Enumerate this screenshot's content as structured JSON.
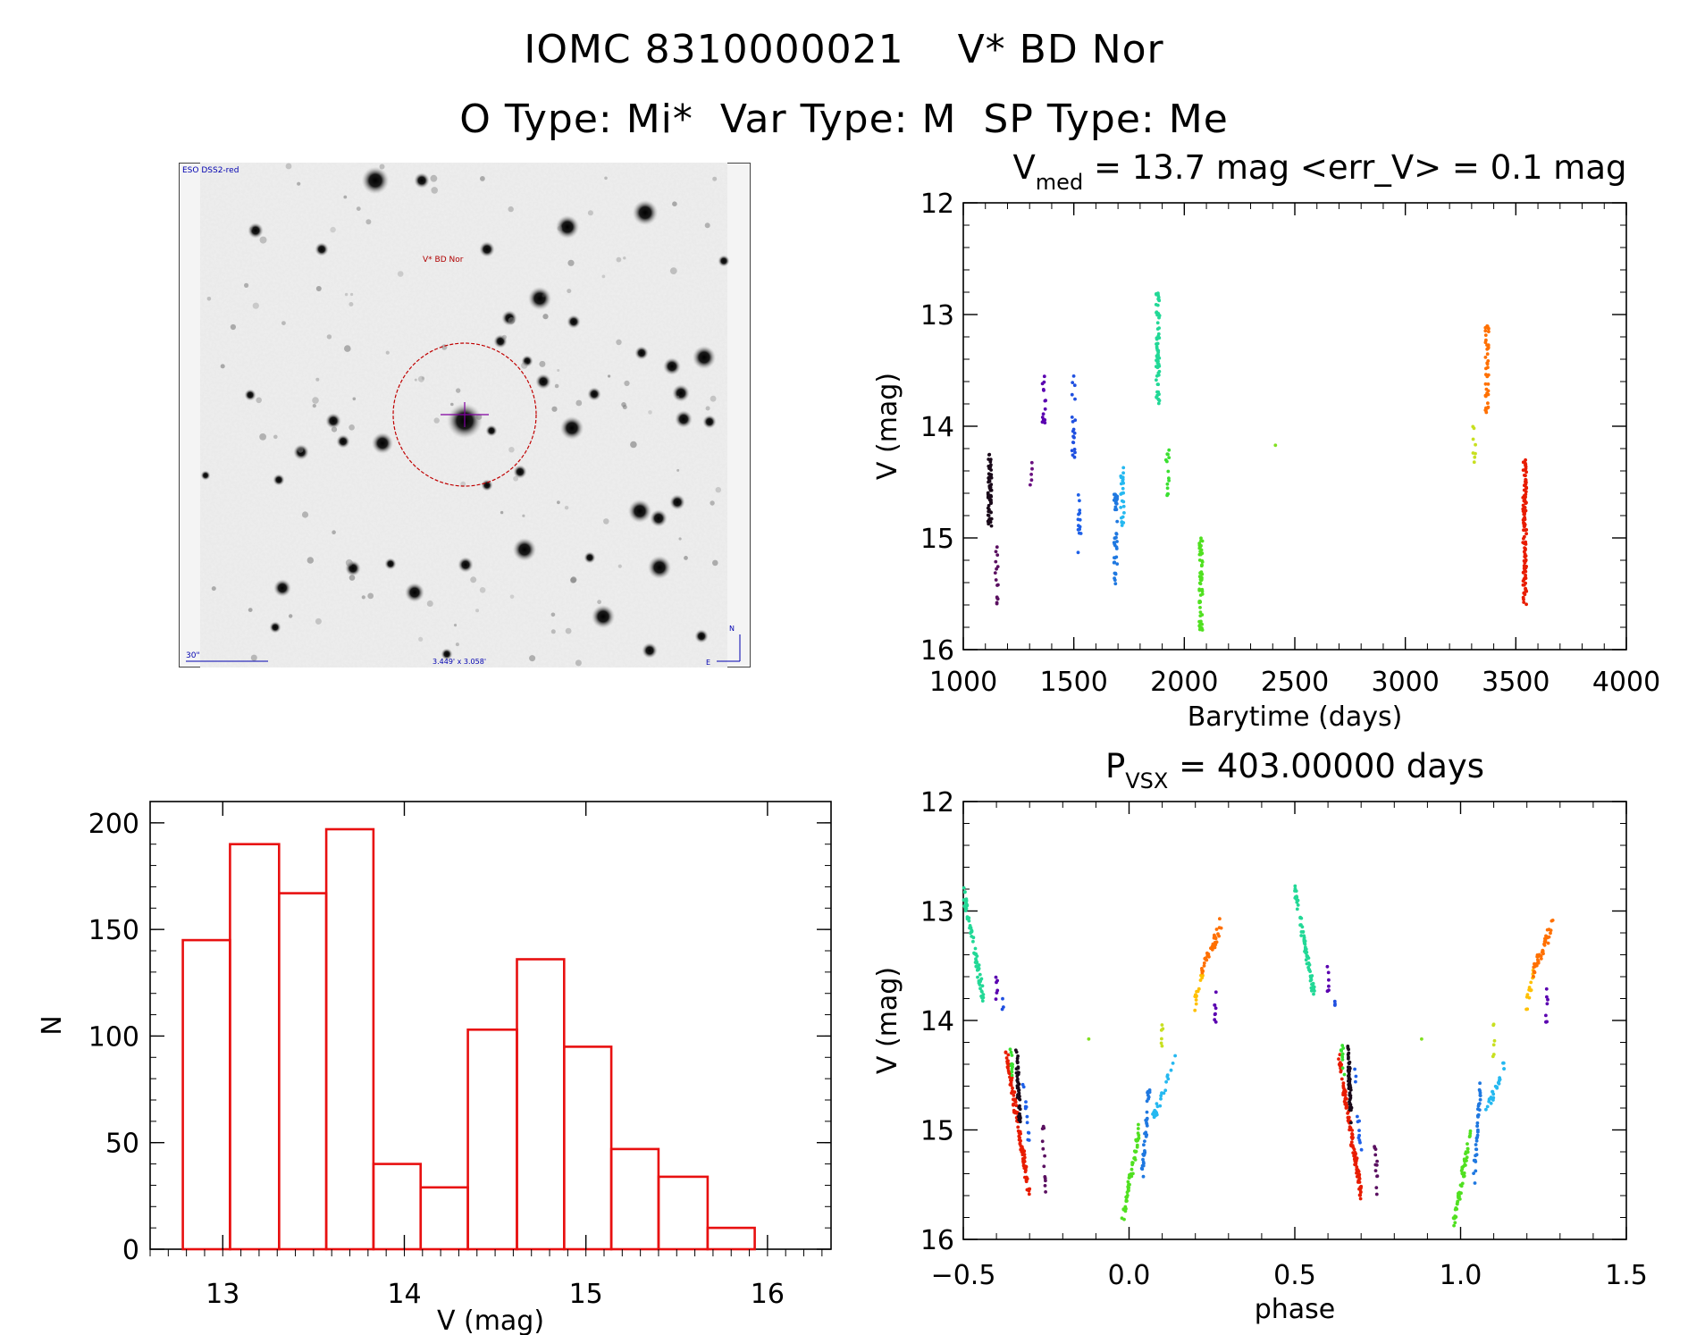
{
  "header": {
    "line1_id": "IOMC 8310000021",
    "line1_name": "V* BD Nor",
    "line2": "O Type: Mi*  Var Type: M  SP Type: Me"
  },
  "finder": {
    "survey": "ESO DSS2-red",
    "target_label": "V* BD Nor",
    "scale_label": "30\"",
    "fov_label": "3.449' x 3.058'",
    "north": "N",
    "east": "E",
    "colors": {
      "circle": "#c00000",
      "cross": "#8000a0",
      "label": "#b00000",
      "annot": "#0000b0"
    }
  },
  "chart_data": [
    {
      "id": "light_curve",
      "type": "scatter",
      "title_main": "V",
      "title_sub": "med",
      "title_rest": " = 13.7 mag <err_V> = 0.1 mag",
      "xlabel": "Barytime (days)",
      "ylabel": "V (mag)",
      "xlim": [
        1000,
        4000
      ],
      "ylim": [
        16,
        12
      ],
      "xticks": [
        "1000",
        "1500",
        "2000",
        "2500",
        "3000",
        "3500",
        "4000"
      ],
      "yticks": [
        "12",
        "13",
        "14",
        "15",
        "16"
      ],
      "segments": [
        {
          "x": 1120,
          "ymin": 14.25,
          "ymax": 14.9,
          "color": "#1a0a1a",
          "n": 60
        },
        {
          "x": 1150,
          "ymin": 15.0,
          "ymax": 15.6,
          "color": "#5a1060",
          "n": 15
        },
        {
          "x": 1310,
          "ymin": 14.3,
          "ymax": 14.6,
          "color": "#6a1080",
          "n": 5
        },
        {
          "x": 1365,
          "ymin": 13.5,
          "ymax": 14.0,
          "color": "#5a00b0",
          "n": 15
        },
        {
          "x": 1500,
          "ymin": 13.55,
          "ymax": 14.3,
          "color": "#2050e0",
          "n": 20
        },
        {
          "x": 1525,
          "ymin": 14.6,
          "ymax": 15.2,
          "color": "#1e60e8",
          "n": 14
        },
        {
          "x": 1690,
          "ymin": 14.6,
          "ymax": 15.45,
          "color": "#1f78e0",
          "n": 40
        },
        {
          "x": 1720,
          "ymin": 14.35,
          "ymax": 14.9,
          "color": "#25b8f0",
          "n": 25
        },
        {
          "x": 1880,
          "ymin": 12.8,
          "ymax": 13.8,
          "color": "#22d896",
          "n": 70
        },
        {
          "x": 1925,
          "ymin": 14.2,
          "ymax": 14.65,
          "color": "#3ae030",
          "n": 15
        },
        {
          "x": 2075,
          "ymin": 15.0,
          "ymax": 15.85,
          "color": "#50e020",
          "n": 60
        },
        {
          "x": 2420,
          "ymin": 14.17,
          "ymax": 14.17,
          "color": "#80e020",
          "n": 1
        },
        {
          "x": 3310,
          "ymin": 14.0,
          "ymax": 14.4,
          "color": "#c8e020",
          "n": 8
        },
        {
          "x": 3370,
          "ymin": 13.1,
          "ymax": 13.9,
          "color": "#ff7000",
          "n": 45
        },
        {
          "x": 3540,
          "ymin": 14.3,
          "ymax": 15.6,
          "color": "#e81c00",
          "n": 110
        }
      ]
    },
    {
      "id": "histogram",
      "type": "bar",
      "xlabel": "V (mag)",
      "ylabel": "N",
      "xlim": [
        12.6,
        16.35
      ],
      "ylim": [
        0,
        210
      ],
      "xticks": [
        "13",
        "14",
        "15",
        "16"
      ],
      "yticks": [
        "0",
        "50",
        "100",
        "150",
        "200"
      ],
      "bin_edges": [
        12.78,
        13.04,
        13.31,
        13.57,
        13.83,
        14.09,
        14.35,
        14.62,
        14.88,
        15.14,
        15.4,
        15.67,
        15.93
      ],
      "values": [
        145,
        190,
        167,
        197,
        40,
        29,
        103,
        136,
        95,
        47,
        34,
        10
      ],
      "color": "#e81010"
    },
    {
      "id": "phased",
      "type": "scatter",
      "title_main": "P",
      "title_sub": "VSX",
      "title_rest": " = 403.00000 days",
      "xlabel": "phase",
      "ylabel": "V (mag)",
      "xlim": [
        -0.5,
        1.5
      ],
      "ylim": [
        16,
        12
      ],
      "xticks": [
        "−0.5",
        "0.0",
        "0.5",
        "1.0",
        "1.5"
      ],
      "yticks": [
        "12",
        "13",
        "14",
        "15",
        "16"
      ],
      "segments": [
        {
          "p0": -0.5,
          "p1": -0.44,
          "m0": 12.8,
          "m1": 13.8,
          "color": "#22d896",
          "n": 70
        },
        {
          "p0": -0.4,
          "p1": -0.4,
          "m0": 13.55,
          "m1": 13.8,
          "color": "#5a00b0",
          "n": 6
        },
        {
          "p0": -0.38,
          "p1": -0.38,
          "m0": 13.85,
          "m1": 13.9,
          "color": "#2050e0",
          "n": 3
        },
        {
          "p0": -0.37,
          "p1": -0.3,
          "m0": 14.3,
          "m1": 15.6,
          "color": "#e81c00",
          "n": 110
        },
        {
          "p0": -0.36,
          "p1": -0.35,
          "m0": 14.2,
          "m1": 14.5,
          "color": "#3ae030",
          "n": 10
        },
        {
          "p0": -0.34,
          "p1": -0.33,
          "m0": 14.25,
          "m1": 14.9,
          "color": "#1a0a1a",
          "n": 50
        },
        {
          "p0": -0.32,
          "p1": -0.3,
          "m0": 14.5,
          "m1": 15.2,
          "color": "#1e60e8",
          "n": 12
        },
        {
          "p0": -0.26,
          "p1": -0.25,
          "m0": 15.0,
          "m1": 15.6,
          "color": "#5a1060",
          "n": 12
        },
        {
          "p0": -0.12,
          "p1": -0.12,
          "m0": 14.17,
          "m1": 14.17,
          "color": "#80e020",
          "n": 1
        },
        {
          "p0": -0.02,
          "p1": 0.03,
          "m0": 15.85,
          "m1": 15.0,
          "color": "#50e020",
          "n": 55
        },
        {
          "p0": 0.04,
          "p1": 0.06,
          "m0": 15.45,
          "m1": 14.6,
          "color": "#1f78e0",
          "n": 35
        },
        {
          "p0": 0.07,
          "p1": 0.14,
          "m0": 14.9,
          "m1": 14.35,
          "color": "#25b8f0",
          "n": 25
        },
        {
          "p0": 0.1,
          "p1": 0.1,
          "m0": 14.05,
          "m1": 14.35,
          "color": "#c8e020",
          "n": 6
        },
        {
          "p0": 0.2,
          "p1": 0.22,
          "m0": 13.85,
          "m1": 13.55,
          "color": "#ffc000",
          "n": 15
        },
        {
          "p0": 0.22,
          "p1": 0.28,
          "m0": 13.55,
          "m1": 13.1,
          "color": "#ff7000",
          "n": 40
        },
        {
          "p0": 0.26,
          "p1": 0.26,
          "m0": 13.75,
          "m1": 14.0,
          "color": "#5a00b0",
          "n": 8
        }
      ]
    }
  ]
}
